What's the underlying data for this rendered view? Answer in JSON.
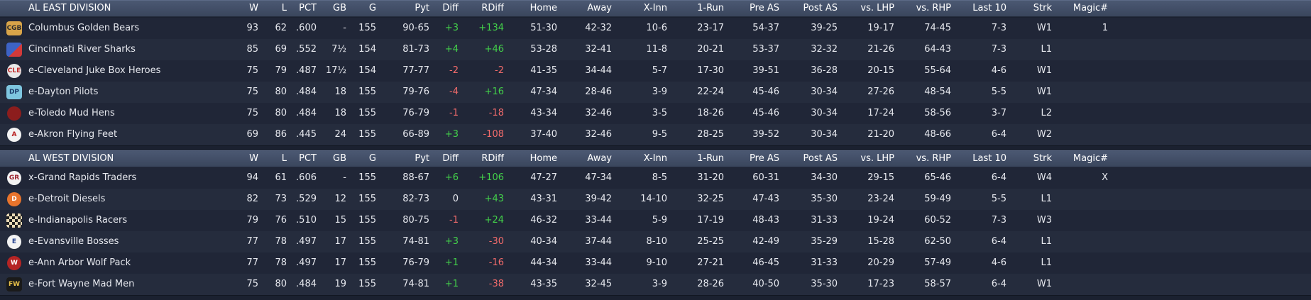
{
  "columns": [
    "W",
    "L",
    "PCT",
    "GB",
    "G",
    "Pyt",
    "Diff",
    "RDiff",
    "Home",
    "Away",
    "X-Inn",
    "1-Run",
    "Pre AS",
    "Post AS",
    "vs. LHP",
    "vs. RHP",
    "Last 10",
    "Strk",
    "Magic#"
  ],
  "divisions": [
    {
      "name": "AL EAST DIVISION",
      "teams": [
        {
          "name": "Columbus Golden Bears",
          "logo": {
            "text": "CGB",
            "bg": "#d8a449",
            "fg": "#2b2b2b",
            "round": false
          },
          "W": "93",
          "L": "62",
          "PCT": ".600",
          "GB": "-",
          "G": "155",
          "Pyt": "90-65",
          "Diff": "+3",
          "RDiff": "+134",
          "Home": "51-30",
          "Away": "42-32",
          "XInn": "10-6",
          "OneRun": "23-17",
          "PreAS": "54-37",
          "PostAS": "39-25",
          "vsLHP": "19-17",
          "vsRHP": "74-45",
          "Last10": "7-3",
          "Strk": "W1",
          "Magic": "1"
        },
        {
          "name": "Cincinnati River Sharks",
          "logo": {
            "text": "",
            "bg": "#3d63c6",
            "fg": "#ffffff",
            "round": false,
            "accent": "#d23a3a"
          },
          "W": "85",
          "L": "69",
          "PCT": ".552",
          "GB": "7½",
          "G": "154",
          "Pyt": "81-73",
          "Diff": "+4",
          "RDiff": "+46",
          "Home": "53-28",
          "Away": "32-41",
          "XInn": "11-8",
          "OneRun": "20-21",
          "PreAS": "53-37",
          "PostAS": "32-32",
          "vsLHP": "21-26",
          "vsRHP": "64-43",
          "Last10": "7-3",
          "Strk": "L1",
          "Magic": ""
        },
        {
          "name": "e-Cleveland Juke Box Heroes",
          "logo": {
            "text": "CLE",
            "bg": "#e9e9e9",
            "fg": "#c22b2b",
            "round": true
          },
          "W": "75",
          "L": "79",
          "PCT": ".487",
          "GB": "17½",
          "G": "154",
          "Pyt": "77-77",
          "Diff": "-2",
          "RDiff": "-2",
          "Home": "41-35",
          "Away": "34-44",
          "XInn": "5-7",
          "OneRun": "17-30",
          "PreAS": "39-51",
          "PostAS": "36-28",
          "vsLHP": "20-15",
          "vsRHP": "55-64",
          "Last10": "4-6",
          "Strk": "W1",
          "Magic": ""
        },
        {
          "name": "e-Dayton Pilots",
          "logo": {
            "text": "DP",
            "bg": "#7ec6e0",
            "fg": "#1c3b6a",
            "round": false
          },
          "W": "75",
          "L": "80",
          "PCT": ".484",
          "GB": "18",
          "G": "155",
          "Pyt": "79-76",
          "Diff": "-4",
          "RDiff": "+16",
          "Home": "47-34",
          "Away": "28-46",
          "XInn": "3-9",
          "OneRun": "22-24",
          "PreAS": "45-46",
          "PostAS": "30-34",
          "vsLHP": "27-26",
          "vsRHP": "48-54",
          "Last10": "5-5",
          "Strk": "W1",
          "Magic": ""
        },
        {
          "name": "e-Toledo  Mud Hens",
          "logo": {
            "text": "",
            "bg": "#8c1d1d",
            "fg": "#f0d48a",
            "round": true
          },
          "W": "75",
          "L": "80",
          "PCT": ".484",
          "GB": "18",
          "G": "155",
          "Pyt": "76-79",
          "Diff": "-1",
          "RDiff": "-18",
          "Home": "43-34",
          "Away": "32-46",
          "XInn": "3-5",
          "OneRun": "18-26",
          "PreAS": "45-46",
          "PostAS": "30-34",
          "vsLHP": "17-24",
          "vsRHP": "58-56",
          "Last10": "3-7",
          "Strk": "L2",
          "Magic": ""
        },
        {
          "name": "e-Akron  Flying Feet",
          "logo": {
            "text": "A",
            "bg": "#f3f3f3",
            "fg": "#b81f1f",
            "round": true
          },
          "W": "69",
          "L": "86",
          "PCT": ".445",
          "GB": "24",
          "G": "155",
          "Pyt": "66-89",
          "Diff": "+3",
          "RDiff": "-108",
          "Home": "37-40",
          "Away": "32-46",
          "XInn": "9-5",
          "OneRun": "28-25",
          "PreAS": "39-52",
          "PostAS": "30-34",
          "vsLHP": "21-20",
          "vsRHP": "48-66",
          "Last10": "6-4",
          "Strk": "W2",
          "Magic": ""
        }
      ]
    },
    {
      "name": "AL WEST DIVISION",
      "teams": [
        {
          "name": "x-Grand Rapids Traders",
          "logo": {
            "text": "GR",
            "bg": "#f3f3f3",
            "fg": "#9a1f2a",
            "round": true
          },
          "W": "94",
          "L": "61",
          "PCT": ".606",
          "GB": "-",
          "G": "155",
          "Pyt": "88-67",
          "Diff": "+6",
          "RDiff": "+106",
          "Home": "47-27",
          "Away": "47-34",
          "XInn": "8-5",
          "OneRun": "31-20",
          "PreAS": "60-31",
          "PostAS": "34-30",
          "vsLHP": "29-15",
          "vsRHP": "65-46",
          "Last10": "6-4",
          "Strk": "W4",
          "Magic": "X"
        },
        {
          "name": "e-Detroit Diesels",
          "logo": {
            "text": "D",
            "bg": "#e8742c",
            "fg": "#ffffff",
            "round": true
          },
          "W": "82",
          "L": "73",
          "PCT": ".529",
          "GB": "12",
          "G": "155",
          "Pyt": "82-73",
          "Diff": "0",
          "RDiff": "+43",
          "Home": "43-31",
          "Away": "39-42",
          "XInn": "14-10",
          "OneRun": "32-25",
          "PreAS": "47-43",
          "PostAS": "35-30",
          "vsLHP": "23-24",
          "vsRHP": "59-49",
          "Last10": "5-5",
          "Strk": "L1",
          "Magic": ""
        },
        {
          "name": "e-Indianapolis Racers",
          "logo": {
            "text": "",
            "bg": "#e9d9b5",
            "fg": "#222222",
            "round": false,
            "checker": true
          },
          "W": "79",
          "L": "76",
          "PCT": ".510",
          "GB": "15",
          "G": "155",
          "Pyt": "80-75",
          "Diff": "-1",
          "RDiff": "+24",
          "Home": "46-32",
          "Away": "33-44",
          "XInn": "5-9",
          "OneRun": "17-19",
          "PreAS": "48-43",
          "PostAS": "31-33",
          "vsLHP": "19-24",
          "vsRHP": "60-52",
          "Last10": "7-3",
          "Strk": "W3",
          "Magic": ""
        },
        {
          "name": "e-Evansville Bosses",
          "logo": {
            "text": "E",
            "bg": "#f3f3f3",
            "fg": "#23408e",
            "round": true
          },
          "W": "77",
          "L": "78",
          "PCT": ".497",
          "GB": "17",
          "G": "155",
          "Pyt": "74-81",
          "Diff": "+3",
          "RDiff": "-30",
          "Home": "40-34",
          "Away": "37-44",
          "XInn": "8-10",
          "OneRun": "25-25",
          "PreAS": "42-49",
          "PostAS": "35-29",
          "vsLHP": "15-28",
          "vsRHP": "62-50",
          "Last10": "6-4",
          "Strk": "L1",
          "Magic": ""
        },
        {
          "name": "e-Ann Arbor Wolf Pack",
          "logo": {
            "text": "W",
            "bg": "#b52424",
            "fg": "#ffffff",
            "round": true
          },
          "W": "77",
          "L": "78",
          "PCT": ".497",
          "GB": "17",
          "G": "155",
          "Pyt": "76-79",
          "Diff": "+1",
          "RDiff": "-16",
          "Home": "44-34",
          "Away": "33-44",
          "XInn": "9-10",
          "OneRun": "27-21",
          "PreAS": "46-45",
          "PostAS": "31-33",
          "vsLHP": "20-29",
          "vsRHP": "57-49",
          "Last10": "4-6",
          "Strk": "L1",
          "Magic": ""
        },
        {
          "name": "e-Fort Wayne Mad Men",
          "logo": {
            "text": "FW",
            "bg": "#1a1a1a",
            "fg": "#e8c14a",
            "round": false
          },
          "W": "75",
          "L": "80",
          "PCT": ".484",
          "GB": "19",
          "G": "155",
          "Pyt": "74-81",
          "Diff": "+1",
          "RDiff": "-38",
          "Home": "43-35",
          "Away": "32-45",
          "XInn": "3-9",
          "OneRun": "28-26",
          "PreAS": "40-50",
          "PostAS": "35-30",
          "vsLHP": "17-23",
          "vsRHP": "58-57",
          "Last10": "6-4",
          "Strk": "W1",
          "Magic": ""
        }
      ]
    }
  ]
}
